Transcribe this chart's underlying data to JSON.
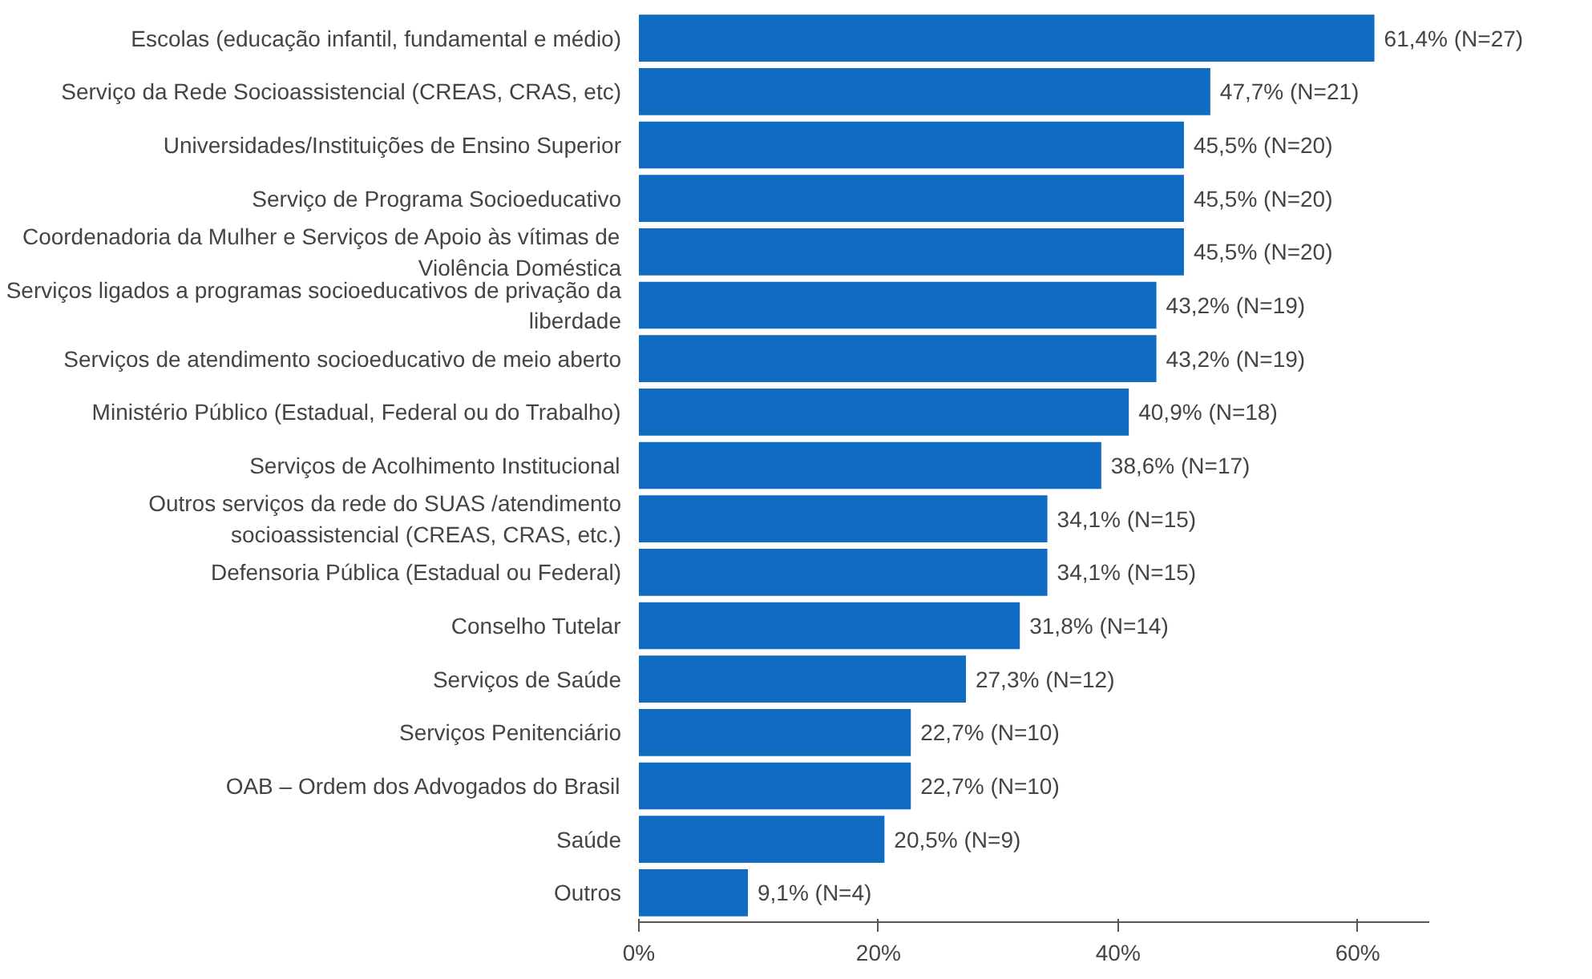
{
  "chart_data": {
    "type": "bar",
    "orientation": "horizontal",
    "categories": [
      "Escolas (educação infantil, fundamental e médio)",
      "Serviço da Rede Socioassistencial (CREAS, CRAS, etc)",
      "Universidades/Instituições de Ensino Superior",
      "Serviço de Programa Socioeducativo",
      "Coordenadoria da Mulher e Serviços de Apoio às vítimas de\nViolência Doméstica",
      "Serviços ligados a programas socioeducativos de privação da\nliberdade",
      "Serviços de atendimento socioeducativo de meio aberto",
      "Ministério Público (Estadual, Federal ou do Trabalho)",
      "Serviços de Acolhimento Institucional",
      "Outros serviços da rede do SUAS /atendimento\nsocioassistencial (CREAS, CRAS, etc.)",
      "Defensoria Pública (Estadual ou Federal)",
      "Conselho Tutelar",
      "Serviços de Saúde",
      "Serviços Penitenciário",
      "OAB – Ordem dos Advogados do Brasil",
      "Saúde",
      "Outros"
    ],
    "values": [
      61.4,
      47.7,
      45.5,
      45.5,
      45.5,
      43.2,
      43.2,
      40.9,
      38.6,
      34.1,
      34.1,
      31.8,
      27.3,
      22.7,
      22.7,
      20.5,
      9.1
    ],
    "value_labels": [
      "61,4% (N=27)",
      "47,7% (N=21)",
      "45,5% (N=20)",
      "45,5% (N=20)",
      "45,5% (N=20)",
      "43,2% (N=19)",
      "43,2% (N=19)",
      "40,9% (N=18)",
      "38,6% (N=17)",
      "34,1% (N=15)",
      "34,1% (N=15)",
      "31,8% (N=14)",
      "27,3% (N=12)",
      "22,7% (N=10)",
      "22,7% (N=10)",
      "20,5% (N=9)",
      "9,1% (N=4)"
    ],
    "color": "#0f6cc2",
    "xlim": [
      0,
      66
    ],
    "xticks": [
      {
        "value": 0,
        "label": "0%"
      },
      {
        "value": 20,
        "label": "20%"
      },
      {
        "value": 40,
        "label": "40%"
      },
      {
        "value": 60,
        "label": "60%"
      }
    ],
    "grid": false
  }
}
